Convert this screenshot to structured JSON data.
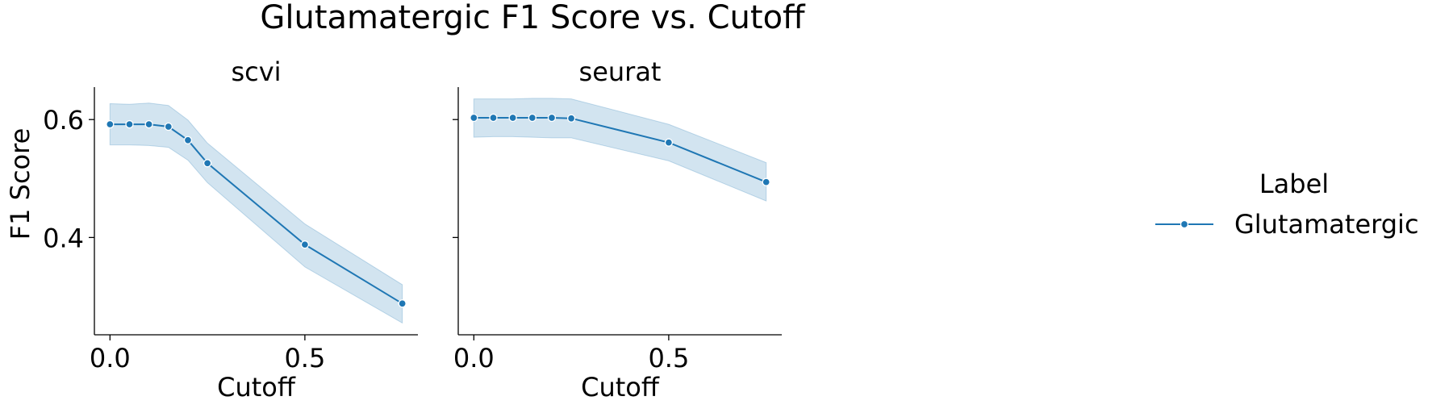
{
  "chart_data": {
    "type": "line",
    "title": "Glutamatergic F1 Score vs. Cutoff",
    "xlabel": "Cutoff",
    "ylabel": "F1 Score",
    "xlim": [
      -0.04,
      0.79
    ],
    "ylim": [
      0.235,
      0.655
    ],
    "xticks": [
      0.0,
      0.5
    ],
    "xtick_labels": [
      "0.0",
      "0.5"
    ],
    "yticks": [
      0.4,
      0.6
    ],
    "ytick_labels": [
      "0.4",
      "0.6"
    ],
    "grid": false,
    "shared_y": true,
    "legend": {
      "title": "Label",
      "position": "right",
      "entries": [
        "Glutamatergic"
      ]
    },
    "colors": {
      "line": "#1f77b4",
      "band": "#1f77b4"
    },
    "panels": [
      {
        "title": "scvi",
        "series": [
          {
            "name": "Glutamatergic",
            "x": [
              0.0,
              0.05,
              0.1,
              0.15,
              0.2,
              0.25,
              0.5,
              0.75
            ],
            "y": [
              0.592,
              0.592,
              0.592,
              0.588,
              0.565,
              0.526,
              0.388,
              0.288
            ],
            "ci_low": [
              0.557,
              0.557,
              0.556,
              0.553,
              0.531,
              0.493,
              0.35,
              0.255
            ],
            "ci_high": [
              0.627,
              0.626,
              0.628,
              0.624,
              0.599,
              0.56,
              0.423,
              0.32
            ]
          }
        ]
      },
      {
        "title": "seurat",
        "series": [
          {
            "name": "Glutamatergic",
            "x": [
              0.0,
              0.05,
              0.1,
              0.15,
              0.2,
              0.25,
              0.5,
              0.75
            ],
            "y": [
              0.603,
              0.603,
              0.603,
              0.603,
              0.603,
              0.602,
              0.561,
              0.494
            ],
            "ci_low": [
              0.57,
              0.571,
              0.571,
              0.57,
              0.569,
              0.569,
              0.53,
              0.462
            ],
            "ci_high": [
              0.635,
              0.635,
              0.635,
              0.636,
              0.636,
              0.635,
              0.592,
              0.527
            ]
          }
        ]
      }
    ]
  }
}
